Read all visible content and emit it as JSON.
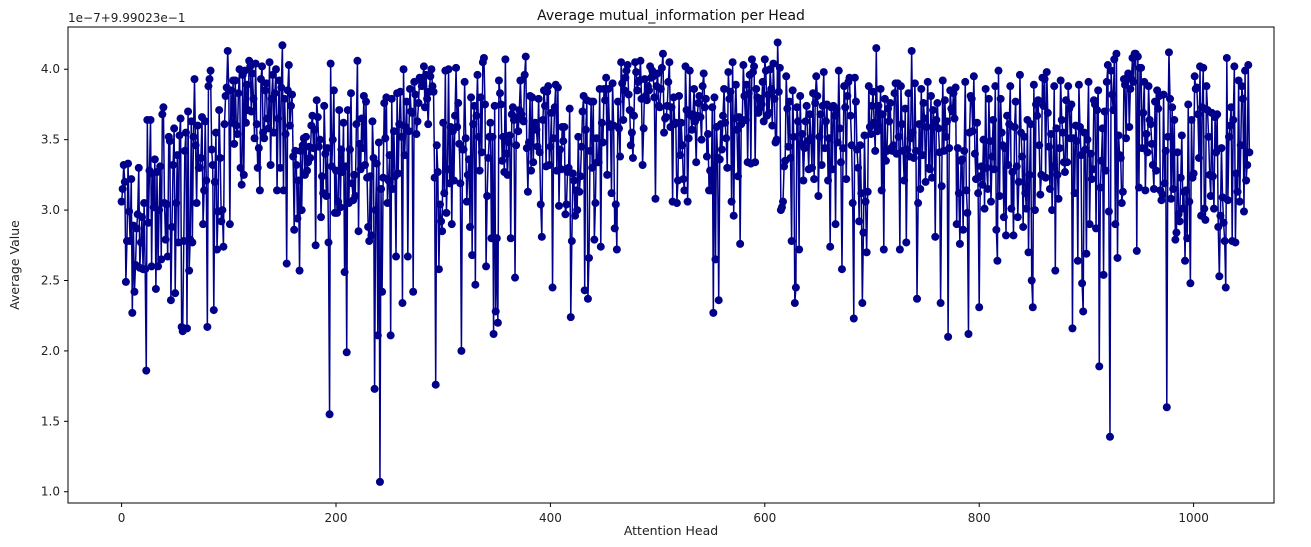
{
  "chart_data": {
    "type": "line",
    "title": "Average mutual_information per Head",
    "xlabel": "Attention Head",
    "ylabel": "Average Value",
    "y_offset_label": "1e−7+9.99023e−1",
    "xlim": [
      -50,
      1075
    ],
    "ylim": [
      0.92,
      4.3
    ],
    "x_ticks": [
      0,
      200,
      400,
      600,
      800,
      1000
    ],
    "y_ticks": [
      1.0,
      1.5,
      2.0,
      2.5,
      3.0,
      3.5,
      4.0
    ],
    "grid": false,
    "n_points": 1024,
    "series": [
      {
        "color": "#00008b",
        "marker": "circle",
        "x_start": 0,
        "x_step": 1,
        "values": [
          3.06,
          3.15,
          3.32,
          3.2,
          2.49,
          2.78,
          3.33,
          2.99,
          2.78,
          3.22,
          2.27,
          2.89,
          2.42,
          2.61,
          2.87,
          2.97,
          3.3,
          2.59,
          2.77,
          2.95,
          2.58,
          3.05,
          2.58,
          1.86,
          3.64,
          2.91,
          3.28,
          3.64,
          2.6,
          3.26,
          3.02,
          3.36,
          2.44,
          3.27,
          2.6,
          3.0,
          3.31,
          2.65,
          3.68,
          3.73,
          3.05,
          2.79,
          3.04,
          2.67,
          3.52,
          3.49,
          2.36,
          2.88,
          3.32,
          3.58,
          2.41,
          3.05,
          3.39,
          2.77,
          3.53,
          3.65,
          2.17,
          2.14,
          2.78,
          3.42,
          3.55,
          2.16,
          3.7,
          2.57,
          2.79,
          3.63,
          2.77,
          3.52,
          3.93,
          3.46,
          3.05,
          3.6,
          3.3,
          3.3,
          3.37,
          3.66,
          2.9,
          3.14,
          3.63,
          3.21,
          2.17,
          3.88,
          3.93,
          3.99,
          3.43,
          3.32,
          2.29,
          3.2,
          3.55,
          2.72,
          2.99,
          3.71,
          3.37,
          2.92,
          3.0,
          2.74,
          3.61,
          3.81,
          3.87,
          4.13,
          3.85,
          2.9,
          3.85,
          3.62,
          3.92,
          3.47,
          3.92,
          3.6,
          3.54,
          3.83,
          4.0,
          3.3,
          3.18,
          3.96,
          3.25,
          3.99,
          3.62,
          3.89,
          3.71,
          4.06,
          4.02,
          3.7,
          3.97,
          3.79,
          3.51,
          4.04,
          3.61,
          3.3,
          3.44,
          3.14,
          3.93,
          4.02,
          3.55,
          3.51,
          3.85,
          3.9,
          3.65,
          3.58,
          4.05,
          3.32,
          3.79,
          3.96,
          3.55,
          3.83,
          4.0,
          3.14,
          3.65,
          3.92,
          3.3,
          3.87,
          4.17,
          3.14,
          3.79,
          3.54,
          2.62,
          3.85,
          4.03,
          3.6,
          3.74,
          3.82,
          3.38,
          2.86,
          3.42,
          3.32,
          2.94,
          3.21,
          2.57,
          3.42,
          3.0,
          3.46,
          3.51,
          3.25,
          3.52,
          3.28,
          3.34,
          3.45,
          3.37,
          3.6,
          3.67,
          3.44,
          3.57,
          2.75,
          3.78,
          3.66,
          3.45,
          3.5,
          2.95,
          3.24,
          3.12,
          3.74,
          3.4,
          3.1,
          3.44,
          2.77,
          1.55,
          4.04,
          3.31,
          3.5,
          3.85,
          2.98,
          3.28,
          2.98,
          3.06,
          3.71,
          3.02,
          3.43,
          3.27,
          3.62,
          2.56,
          3.31,
          1.99,
          3.71,
          3.05,
          3.43,
          3.83,
          3.19,
          3.07,
          3.25,
          3.1,
          3.61,
          4.06,
          2.85,
          3.47,
          3.29,
          3.65,
          3.44,
          3.81,
          3.32,
          3.77,
          3.23,
          2.88,
          2.78,
          3.24,
          2.82,
          3.63,
          3.37,
          1.73,
          3.0,
          3.33,
          2.11,
          3.48,
          1.07,
          3.15,
          2.42,
          3.23,
          3.76,
          3.51,
          3.8,
          3.05,
          3.21,
          3.39,
          2.11,
          3.79,
          3.15,
          3.56,
          3.24,
          2.67,
          3.83,
          3.26,
          3.61,
          3.84,
          3.52,
          2.34,
          4.0,
          3.39,
          3.59,
          3.77,
          2.67,
          3.56,
          3.86,
          3.7,
          3.69,
          2.42,
          3.91,
          3.82,
          3.54,
          3.63,
          3.76,
          3.94,
          3.92,
          3.88,
          3.94,
          4.02,
          3.73,
          3.96,
          3.79,
          3.61,
          3.84,
          3.95,
          4.0,
          3.88,
          3.84,
          3.23,
          1.76,
          3.46,
          3.27,
          2.58,
          3.04,
          2.92,
          2.85,
          3.62,
          3.12,
          3.99,
          2.98,
          3.29,
          4.0,
          3.19,
          3.59,
          2.9,
          3.56,
          3.21,
          3.67,
          4.01,
          3.59,
          3.76,
          3.47,
          3.19,
          2.0,
          3.43,
          3.43,
          3.91,
          3.51,
          3.06,
          3.25,
          3.36,
          2.88,
          3.8,
          2.68,
          3.61,
          3.74,
          2.47,
          3.67,
          3.96,
          3.52,
          3.28,
          3.8,
          3.41,
          4.05,
          4.08,
          3.75,
          2.6,
          3.1,
          3.37,
          3.52,
          3.62,
          2.8,
          3.52,
          2.12,
          3.74,
          2.28,
          2.8,
          2.2,
          3.92,
          3.83,
          3.75,
          3.35,
          3.52,
          3.27,
          4.07,
          3.4,
          3.25,
          3.48,
          3.53,
          2.8,
          3.68,
          3.73,
          3.64,
          2.52,
          3.46,
          3.66,
          3.56,
          3.71,
          3.92,
          3.68,
          3.64,
          3.63,
          3.96,
          4.09,
          3.44,
          3.13,
          3.48,
          3.81,
          3.28,
          3.8,
          3.34,
          3.61,
          3.62,
          3.57,
          3.45,
          3.79,
          3.41,
          3.04,
          2.81,
          3.64,
          3.85,
          3.74,
          3.31,
          3.84,
          3.88,
          3.32,
          3.45,
          3.69,
          2.45,
          3.51,
          3.73,
          3.89,
          3.28,
          3.87,
          3.03,
          3.43,
          3.29,
          3.59,
          3.49,
          3.59,
          2.97,
          3.04,
          3.27,
          3.3,
          3.72,
          2.24,
          2.78,
          3.26,
          3.21,
          2.96,
          3.14,
          3.0,
          3.52,
          3.13,
          3.24,
          3.45,
          3.7,
          3.81,
          2.43,
          3.57,
          3.78,
          2.37,
          2.66,
          3.42,
          3.77,
          3.3,
          3.77,
          2.79,
          3.05,
          3.51,
          3.34,
          3.34,
          3.86,
          2.74,
          3.62,
          3.48,
          3.86,
          3.78,
          3.94,
          3.25,
          3.86,
          3.61,
          3.59,
          3.12,
          3.9,
          3.6,
          2.87,
          3.04,
          2.72,
          3.77,
          3.58,
          3.38,
          4.05,
          3.9,
          3.64,
          3.85,
          3.94,
          3.99,
          4.03,
          3.82,
          3.71,
          3.46,
          3.55,
          3.37,
          3.67,
          4.05,
          3.98,
          3.85,
          3.91,
          3.92,
          4.06,
          3.79,
          3.32,
          3.58,
          3.93,
          3.81,
          3.78,
          3.88,
          3.85,
          4.02,
          3.94,
          3.99,
          3.95,
          3.8,
          3.08,
          3.88,
          3.97,
          3.74,
          3.73,
          3.86,
          4.01,
          4.11,
          3.55,
          3.65,
          3.66,
          3.74,
          3.91,
          4.05,
          3.59,
          3.73,
          3.06,
          3.8,
          3.61,
          3.62,
          3.05,
          3.21,
          3.81,
          3.39,
          3.62,
          3.46,
          3.22,
          3.14,
          4.02,
          3.71,
          3.06,
          3.51,
          3.99,
          3.67,
          3.57,
          3.68,
          3.86,
          3.63,
          3.34,
          3.67,
          3.76,
          3.81,
          3.66,
          3.5,
          3.88,
          3.97,
          3.73,
          3.79,
          3.38,
          3.54,
          3.14,
          3.28,
          3.14,
          3.73,
          2.27,
          3.8,
          2.65,
          3.59,
          3.37,
          2.36,
          3.36,
          3.61,
          3.43,
          3.67,
          3.86,
          3.62,
          3.51,
          3.3,
          3.98,
          3.79,
          3.84,
          3.06,
          4.05,
          2.96,
          3.65,
          3.89,
          3.57,
          3.24,
          3.66,
          2.76,
          3.61,
          3.64,
          4.03,
          3.81,
          3.64,
          3.89,
          3.34,
          3.83,
          3.96,
          3.33,
          4.07,
          3.98,
          4.02,
          3.34,
          3.86,
          3.8,
          3.69,
          3.72,
          3.79,
          3.75,
          3.91,
          3.63,
          4.07,
          3.99,
          3.67,
          3.82,
          3.69,
          4.0,
          3.86,
          3.6,
          4.04,
          3.79,
          3.48,
          3.5,
          4.19,
          3.84,
          4.01,
          3.0,
          3.02,
          3.06,
          3.31,
          3.35,
          3.95,
          3.72,
          3.45,
          3.77,
          3.37,
          2.78,
          3.85,
          3.52,
          2.34,
          2.45,
          3.73,
          3.63,
          2.72,
          3.81,
          3.47,
          3.54,
          3.21,
          3.44,
          3.63,
          3.74,
          3.49,
          3.29,
          3.68,
          3.51,
          3.3,
          3.83,
          3.22,
          3.76,
          3.95,
          3.81,
          3.1,
          3.52,
          3.68,
          3.32,
          3.74,
          3.98,
          3.44,
          3.63,
          3.75,
          3.21,
          3.51,
          2.74,
          3.73,
          3.29,
          3.74,
          3.67,
          2.9,
          3.72,
          3.48,
          3.99,
          3.58,
          3.34,
          2.58,
          3.44,
          3.88,
          3.73,
          3.22,
          3.81,
          3.91,
          3.94,
          3.67,
          3.46,
          3.05,
          2.23,
          3.94,
          3.77,
          3.43,
          3.3,
          2.92,
          3.46,
          3.12,
          2.34,
          2.84,
          3.53,
          3.06,
          2.7,
          3.13,
          3.88,
          3.59,
          3.54,
          3.74,
          3.84,
          3.62,
          3.42,
          4.15,
          3.56,
          3.74,
          3.59,
          3.86,
          3.14,
          3.68,
          2.72,
          3.79,
          3.35,
          3.42,
          3.72,
          3.63,
          3.76,
          3.44,
          3.42,
          3.46,
          3.83,
          3.9,
          3.4,
          3.9,
          3.52,
          2.72,
          3.88,
          3.61,
          3.42,
          3.21,
          3.72,
          2.77,
          3.43,
          3.83,
          3.38,
          3.51,
          4.13,
          3.55,
          3.37,
          3.9,
          3.42,
          2.37,
          3.05,
          3.61,
          3.15,
          3.86,
          3.39,
          3.76,
          3.65,
          3.2,
          3.59,
          3.91,
          3.3,
          3.29,
          3.81,
          3.23,
          3.71,
          3.62,
          2.81,
          3.64,
          3.76,
          3.58,
          3.41,
          2.34,
          3.17,
          3.92,
          3.42,
          3.78,
          3.52,
          3.63,
          2.1,
          3.44,
          3.85,
          3.72,
          3.7,
          3.83,
          3.65,
          3.87,
          2.9,
          3.44,
          3.12,
          2.76,
          3.35,
          3.36,
          2.86,
          3.42,
          3.91,
          3.14,
          2.98,
          2.12,
          3.55,
          3.81,
          3.79,
          3.56,
          3.95,
          3.4,
          3.22,
          3.62,
          3.12,
          2.31,
          3.24,
          3.31,
          3.18,
          3.5,
          3.01,
          3.86,
          3.3,
          3.15,
          3.79,
          3.49,
          3.06,
          3.38,
          3.64,
          3.29,
          3.88,
          2.86,
          2.64,
          3.99,
          3.1,
          3.79,
          3.55,
          3.46,
          2.95,
          3.44,
          2.82,
          3.67,
          3.32,
          3.61,
          3.88,
          3.01,
          3.27,
          2.82,
          3.59,
          3.77,
          3.31,
          2.95,
          3.2,
          3.96,
          3.55,
          3.38,
          2.88,
          3.52,
          3.12,
          3.01,
          3.64,
          2.7,
          3.25,
          3.61,
          2.5,
          2.31,
          3.89,
          3.0,
          3.75,
          3.67,
          3.78,
          3.46,
          3.11,
          3.25,
          3.94,
          3.74,
          3.93,
          3.23,
          3.98,
          3.69,
          3.45,
          3.15,
          3.54,
          3.0,
          3.31,
          3.88,
          2.57,
          3.58,
          3.25,
          3.08,
          3.44,
          3.92,
          3.64,
          3.55,
          3.34,
          3.27,
          3.78,
          3.34,
          3.88,
          3.72,
          3.51,
          3.75,
          2.16,
          3.51,
          3.12,
          3.6,
          3.49,
          2.64,
          3.89,
          3.59,
          3.39,
          2.48,
          2.28,
          3.55,
          3.43,
          2.69,
          3.5,
          3.91,
          2.9,
          3.4,
          3.22,
          3.29,
          3.78,
          3.75,
          2.87,
          3.71,
          3.85,
          1.89,
          3.16,
          3.35,
          3.58,
          2.54,
          3.7,
          3.28,
          3.91,
          4.03,
          2.99,
          1.39,
          3.99,
          3.82,
          3.71,
          4.07,
          2.9,
          4.11,
          2.66,
          3.53,
          3.39,
          3.37,
          3.05,
          3.13,
          3.93,
          3.89,
          3.51,
          3.94,
          3.97,
          3.59,
          3.86,
          3.93,
          4.08,
          3.91,
          4.11,
          4.11,
          2.71,
          4.09,
          3.16,
          4.01,
          4.01,
          3.44,
          3.69,
          3.91,
          3.14,
          3.54,
          3.41,
          3.88,
          3.64,
          3.61,
          3.47,
          3.32,
          3.15,
          3.77,
          3.28,
          3.85,
          3.72,
          3.81,
          3.14,
          3.07,
          3.11,
          3.82,
          3.19,
          3.42,
          1.6,
          3.52,
          4.12,
          3.79,
          3.08,
          3.73,
          3.15,
          3.64,
          2.79,
          2.84,
          3.41,
          2.97,
          2.92,
          3.23,
          3.53,
          3.01,
          3.13,
          2.64,
          3.14,
          2.8,
          3.75,
          3.06,
          2.48,
          3.64,
          3.23,
          3.26,
          3.95,
          3.86,
          3.87,
          3.68,
          3.37,
          4.02,
          2.96,
          3.73,
          4.01,
          3.01,
          2.93,
          3.88,
          3.71,
          3.52,
          3.25,
          3.1,
          3.69,
          3.24,
          3.01,
          3.66,
          3.41,
          3.68,
          2.88,
          2.53,
          2.96,
          3.44,
          3.09,
          2.91,
          2.78,
          2.45,
          4.08,
          3.07,
          3.52,
          3.6,
          3.73,
          2.78,
          3.64,
          4.02,
          2.77,
          3.26,
          3.13,
          3.92,
          3.06,
          3.46,
          3.88,
          3.79,
          2.99,
          3.99,
          3.21,
          3.32,
          4.03,
          3.41
        ]
      }
    ]
  }
}
